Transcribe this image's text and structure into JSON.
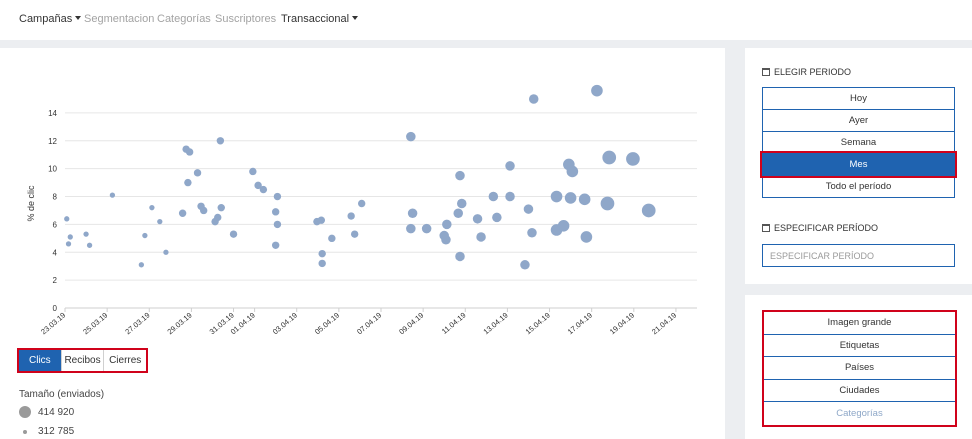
{
  "nav": {
    "campaigns": "Campañas",
    "segmentation": "Segmentacion",
    "categories": "Categorías",
    "subscribers": "Suscriptores",
    "transactional": "Transaccional"
  },
  "metric_buttons": [
    "Clics",
    "Recibos",
    "Cierres"
  ],
  "size_legend": {
    "title": "Tamaño (enviados)",
    "max_label": "414 920",
    "min_label": "312 785"
  },
  "period": {
    "title": "ELEGIR PERIODO",
    "options": [
      "Hoy",
      "Ayer",
      "Semana",
      "Mes",
      "Todo el período"
    ],
    "selected": "Mes"
  },
  "specify": {
    "title": "ESPECIFICAR PERÍODO",
    "placeholder": "ESPECIFICAR PERÍODO"
  },
  "views": [
    "Imagen grande",
    "Etiquetas",
    "Países",
    "Ciudades",
    "Categorías"
  ],
  "colors": {
    "accent": "#1f63b0",
    "highlight": "#d0021b",
    "point": "#8fa7c9"
  },
  "chart_data": {
    "type": "scatter",
    "ylabel": "% de clic",
    "ylim": [
      0,
      15
    ],
    "yticks": [
      0,
      2,
      4,
      6,
      8,
      10,
      12,
      14
    ],
    "x_start": "23.03.19",
    "x_end": "22.04.19",
    "xticks": [
      "23.03.19",
      "25.03.19",
      "27.03.19",
      "29.03.19",
      "31.03.19",
      "01.04.19",
      "03.04.19",
      "05.04.19",
      "07.04.19",
      "09.04.19",
      "11.04.19",
      "13.04.19",
      "15.04.19",
      "17.04.19",
      "19.04.19",
      "21.04.19"
    ],
    "points": [
      {
        "x": "23.03.19 02:00",
        "y": 6.4,
        "s": 1
      },
      {
        "x": "23.03.19 04:00",
        "y": 4.6,
        "s": 1
      },
      {
        "x": "23.03.19 06:00",
        "y": 5.1,
        "s": 1
      },
      {
        "x": "24.03.19 00:00",
        "y": 5.3,
        "s": 1
      },
      {
        "x": "24.03.19 04:00",
        "y": 4.5,
        "s": 1
      },
      {
        "x": "25.03.19 06:00",
        "y": 8.1,
        "s": 1
      },
      {
        "x": "26.03.19 15:00",
        "y": 3.1,
        "s": 1
      },
      {
        "x": "26.03.19 19:00",
        "y": 5.2,
        "s": 1
      },
      {
        "x": "27.03.19 03:00",
        "y": 7.2,
        "s": 1
      },
      {
        "x": "27.03.19 12:00",
        "y": 6.2,
        "s": 1
      },
      {
        "x": "27.03.19 19:00",
        "y": 4.0,
        "s": 1
      },
      {
        "x": "28.03.19 14:00",
        "y": 6.8,
        "s": 2
      },
      {
        "x": "28.03.19 18:00",
        "y": 11.4,
        "s": 2
      },
      {
        "x": "28.03.19 20:00",
        "y": 9.0,
        "s": 2
      },
      {
        "x": "28.03.19 22:00",
        "y": 11.2,
        "s": 2
      },
      {
        "x": "29.03.19 07:00",
        "y": 9.7,
        "s": 2
      },
      {
        "x": "29.03.19 11:00",
        "y": 7.3,
        "s": 2
      },
      {
        "x": "29.03.19 14:00",
        "y": 7.0,
        "s": 2
      },
      {
        "x": "30.03.19 03:00",
        "y": 6.2,
        "s": 2
      },
      {
        "x": "30.03.19 06:00",
        "y": 6.5,
        "s": 2
      },
      {
        "x": "30.03.19 09:00",
        "y": 12.0,
        "s": 2
      },
      {
        "x": "30.03.19 10:00",
        "y": 7.2,
        "s": 2
      },
      {
        "x": "31.03.19 00:00",
        "y": 5.3,
        "s": 2
      },
      {
        "x": "31.03.19 22:00",
        "y": 9.8,
        "s": 2
      },
      {
        "x": "01.04.19 04:00",
        "y": 8.8,
        "s": 2
      },
      {
        "x": "01.04.19 10:00",
        "y": 8.5,
        "s": 2
      },
      {
        "x": "02.04.19 00:00",
        "y": 6.9,
        "s": 2
      },
      {
        "x": "02.04.19 00:00",
        "y": 4.5,
        "s": 2
      },
      {
        "x": "02.04.19 02:00",
        "y": 8.0,
        "s": 2
      },
      {
        "x": "02.04.19 02:00",
        "y": 6.0,
        "s": 2
      },
      {
        "x": "03.04.19 23:00",
        "y": 6.2,
        "s": 2
      },
      {
        "x": "04.04.19 04:00",
        "y": 6.3,
        "s": 2
      },
      {
        "x": "04.04.19 05:00",
        "y": 3.9,
        "s": 2
      },
      {
        "x": "04.04.19 05:00",
        "y": 3.2,
        "s": 2
      },
      {
        "x": "04.04.19 16:00",
        "y": 5.0,
        "s": 2
      },
      {
        "x": "05.04.19 14:00",
        "y": 6.6,
        "s": 2
      },
      {
        "x": "05.04.19 18:00",
        "y": 5.3,
        "s": 2
      },
      {
        "x": "06.04.19 02:00",
        "y": 7.5,
        "s": 2
      },
      {
        "x": "08.04.19 10:00",
        "y": 12.3,
        "s": 3
      },
      {
        "x": "08.04.19 10:00",
        "y": 5.7,
        "s": 3
      },
      {
        "x": "08.04.19 12:00",
        "y": 6.8,
        "s": 3
      },
      {
        "x": "09.04.19 04:00",
        "y": 5.7,
        "s": 3
      },
      {
        "x": "10.04.19 00:00",
        "y": 5.2,
        "s": 3
      },
      {
        "x": "10.04.19 02:00",
        "y": 4.9,
        "s": 3
      },
      {
        "x": "10.04.19 03:00",
        "y": 6.0,
        "s": 3
      },
      {
        "x": "10.04.19 16:00",
        "y": 6.8,
        "s": 3
      },
      {
        "x": "10.04.19 18:00",
        "y": 9.5,
        "s": 3
      },
      {
        "x": "10.04.19 18:00",
        "y": 3.7,
        "s": 3
      },
      {
        "x": "10.04.19 20:00",
        "y": 7.5,
        "s": 3
      },
      {
        "x": "11.04.19 14:00",
        "y": 6.4,
        "s": 3
      },
      {
        "x": "11.04.19 18:00",
        "y": 5.1,
        "s": 3
      },
      {
        "x": "12.04.19 08:00",
        "y": 8.0,
        "s": 3
      },
      {
        "x": "12.04.19 12:00",
        "y": 6.5,
        "s": 3
      },
      {
        "x": "13.04.19 03:00",
        "y": 10.2,
        "s": 3
      },
      {
        "x": "13.04.19 03:00",
        "y": 8.0,
        "s": 3
      },
      {
        "x": "13.04.19 20:00",
        "y": 3.1,
        "s": 3
      },
      {
        "x": "14.04.19 00:00",
        "y": 7.1,
        "s": 3
      },
      {
        "x": "14.04.19 04:00",
        "y": 5.4,
        "s": 3
      },
      {
        "x": "14.04.19 06:00",
        "y": 15.0,
        "s": 3
      },
      {
        "x": "15.04.19 08:00",
        "y": 8.0,
        "s": 4
      },
      {
        "x": "15.04.19 08:00",
        "y": 5.6,
        "s": 4
      },
      {
        "x": "15.04.19 16:00",
        "y": 5.9,
        "s": 4
      },
      {
        "x": "15.04.19 22:00",
        "y": 10.3,
        "s": 4
      },
      {
        "x": "16.04.19 00:00",
        "y": 7.9,
        "s": 4
      },
      {
        "x": "16.04.19 02:00",
        "y": 9.8,
        "s": 4
      },
      {
        "x": "16.04.19 16:00",
        "y": 7.8,
        "s": 4
      },
      {
        "x": "16.04.19 18:00",
        "y": 5.1,
        "s": 4
      },
      {
        "x": "17.04.19 06:00",
        "y": 15.6,
        "s": 4
      },
      {
        "x": "17.04.19 18:00",
        "y": 7.5,
        "s": 5
      },
      {
        "x": "17.04.19 20:00",
        "y": 10.8,
        "s": 5
      },
      {
        "x": "18.04.19 23:00",
        "y": 10.7,
        "s": 5
      },
      {
        "x": "19.04.19 17:00",
        "y": 7.0,
        "s": 5
      }
    ]
  }
}
